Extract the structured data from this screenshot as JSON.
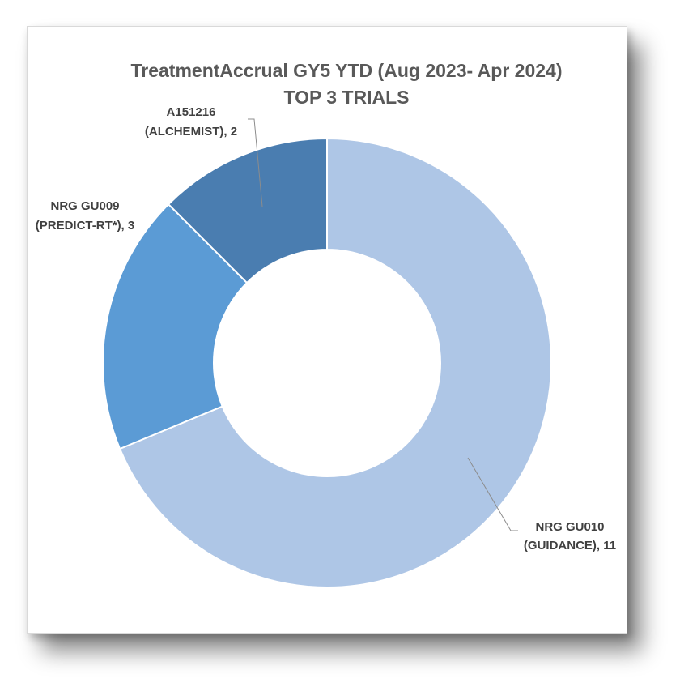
{
  "chart_data": {
    "type": "pie",
    "title": "TreatmentAccrual  GY5 YTD (Aug 2023- Apr 2024)",
    "subtitle": "TOP 3 TRIALS",
    "slices": [
      {
        "label_line1": "NRG GU010",
        "label_line2": "(GUIDANCE), 11",
        "value": 11,
        "color": "#aec6e6"
      },
      {
        "label_line1": "NRG GU009",
        "label_line2": "(PREDICT-RT*),  3",
        "value": 3,
        "color": "#5b9bd5"
      },
      {
        "label_line1": "A151216",
        "label_line2": "(ALCHEMIST), 2",
        "value": 2,
        "color": "#4a7db0"
      }
    ],
    "donut": true,
    "start_angle_deg": 0,
    "direction": "clockwise"
  }
}
